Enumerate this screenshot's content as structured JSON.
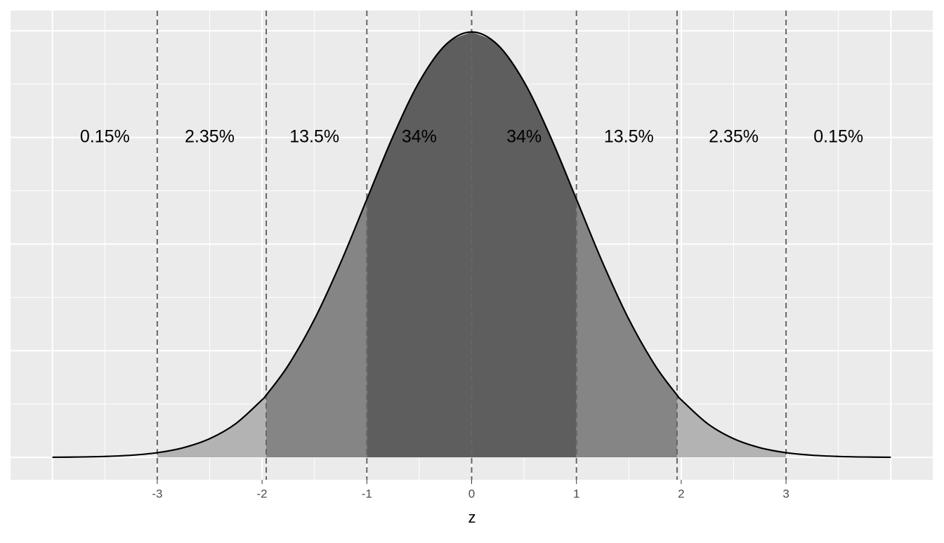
{
  "chart_data": {
    "type": "density",
    "x_label": "z",
    "x": [
      -4,
      -3.75,
      -3.5,
      -3.25,
      -3,
      -2.75,
      -2.5,
      -2.25,
      -2,
      -1.96,
      -1.75,
      -1.5,
      -1.25,
      -1,
      -0.75,
      -0.5,
      -0.25,
      0,
      0.25,
      0.5,
      0.75,
      1,
      1.25,
      1.5,
      1.75,
      1.96,
      2,
      2.25,
      2.5,
      2.75,
      3,
      3.25,
      3.5,
      3.75,
      4
    ],
    "y": [
      0.00013,
      0.00035,
      0.00087,
      0.002,
      0.0044,
      0.0091,
      0.0175,
      0.0317,
      0.054,
      0.0584,
      0.0863,
      0.1295,
      0.1826,
      0.242,
      0.3011,
      0.3521,
      0.3867,
      0.3989,
      0.3867,
      0.3521,
      0.3011,
      0.242,
      0.1826,
      0.1295,
      0.0863,
      0.0584,
      0.054,
      0.0317,
      0.0175,
      0.0091,
      0.0044,
      0.002,
      0.00087,
      0.00035,
      0.00013
    ],
    "line_color": "#000000",
    "cutoffs": [
      -3,
      -1.96,
      -1,
      0,
      1,
      1.96,
      3
    ],
    "region_colors": [
      "#b3b3b3",
      "#858585",
      "#5e5e5e",
      "#5e5e5e",
      "#858585",
      "#b3b3b3"
    ],
    "annotations": [
      {
        "x": -3.5,
        "y": 0.3,
        "text": "0.15%"
      },
      {
        "x": -2.5,
        "y": 0.3,
        "text": "2.35%"
      },
      {
        "x": -1.5,
        "y": 0.3,
        "text": "13.5%"
      },
      {
        "x": -0.5,
        "y": 0.3,
        "text": "34%"
      },
      {
        "x": 0.5,
        "y": 0.3,
        "text": "34%"
      },
      {
        "x": 1.5,
        "y": 0.3,
        "text": "13.5%"
      },
      {
        "x": 2.5,
        "y": 0.3,
        "text": "2.35%"
      },
      {
        "x": 3.5,
        "y": 0.3,
        "text": "0.15%"
      }
    ],
    "xlim": [
      -4.4,
      4.4
    ],
    "ylim": [
      -0.021,
      0.419
    ],
    "xticks": [
      -3,
      -2,
      -1,
      0,
      1,
      2,
      3
    ],
    "x_gridlines": [
      -4,
      -3,
      -2,
      -1,
      0,
      1,
      2,
      3,
      4
    ],
    "y_gridlines": [
      0,
      0.1,
      0.2,
      0.3,
      0.4
    ],
    "grid": true
  }
}
